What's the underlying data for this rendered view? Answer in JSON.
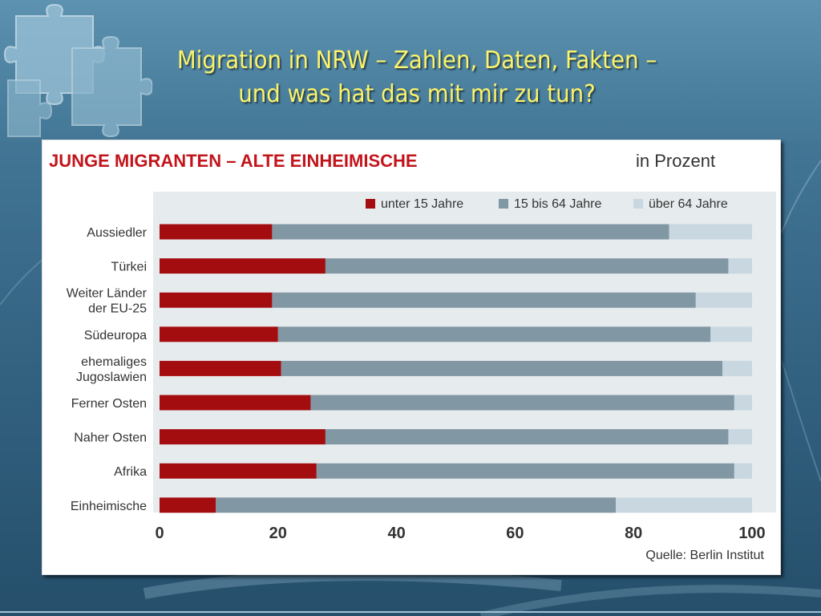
{
  "slide": {
    "title_line1": "Migration in NRW – Zahlen, Daten, Fakten –",
    "title_line2": "und was hat das mit mir zu tun?"
  },
  "colors": {
    "title": "#fbf36a",
    "chart_heading": "#c2141b",
    "series_under15": "#a40d10",
    "series_15to64": "#8297a4",
    "series_over64": "#c8d7e0",
    "plot_background": "#e6ebee"
  },
  "chart_data": {
    "type": "bar",
    "orientation": "horizontal",
    "stacked": true,
    "title": "JUNGE MIGRANTEN – ALTE EINHEIMISCHE",
    "subtitle": "in Prozent",
    "categories": [
      "Aussiedler",
      "Türkei",
      "Weiter Länder der EU-25",
      "Südeuropa",
      "ehemaliges Jugoslawien",
      "Ferner Osten",
      "Naher Osten",
      "Afrika",
      "Einheimische"
    ],
    "category_lines": [
      [
        "Aussiedler"
      ],
      [
        "Türkei"
      ],
      [
        "Weiter Länder",
        "der EU-25"
      ],
      [
        "Südeuropa"
      ],
      [
        "ehemaliges",
        "Jugoslawien"
      ],
      [
        "Ferner Osten"
      ],
      [
        "Naher Osten"
      ],
      [
        "Afrika"
      ],
      [
        "Einheimische"
      ]
    ],
    "series": [
      {
        "name": "unter 15 Jahre",
        "values": [
          19,
          28,
          19,
          20,
          20.5,
          25.5,
          28,
          26.5,
          9.5
        ]
      },
      {
        "name": "15 bis 64 Jahre",
        "values": [
          67,
          68,
          71.5,
          73,
          74.5,
          71.5,
          68,
          70.5,
          67.5
        ]
      },
      {
        "name": "über 64 Jahre",
        "values": [
          14,
          4,
          9.5,
          7,
          5,
          3,
          4,
          3,
          23
        ]
      }
    ],
    "xlim": [
      0,
      100
    ],
    "xticks": [
      0,
      20,
      40,
      60,
      80,
      100
    ],
    "legend_position": "top-right",
    "grid": false,
    "source": "Quelle: Berlin Institut"
  }
}
